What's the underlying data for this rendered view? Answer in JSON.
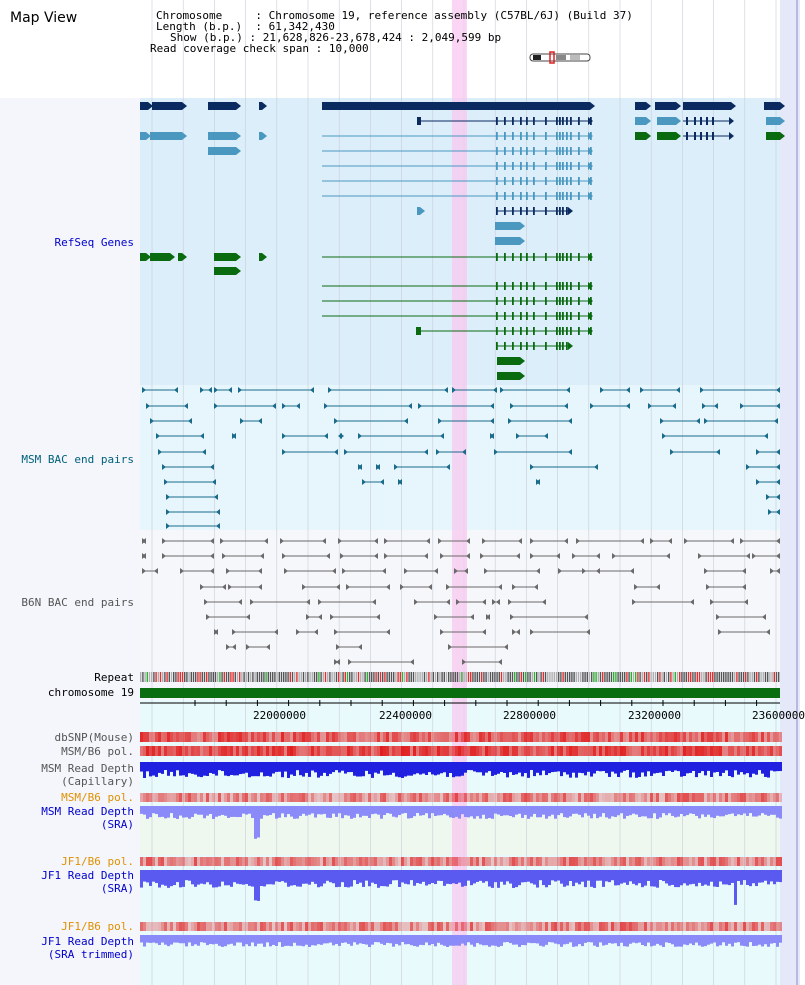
{
  "title": "Map View",
  "info": {
    "chromosome_label": "Chromosome",
    "chromosome_value": "Chromosome 19, reference assembly (C57BL/6J) (Build 37)",
    "length_label": "Length (b.p.)",
    "length_value": "61,342,430",
    "show_label": "Show (b.p.)",
    "show_value": "21,628,826-23,678,424 : 2,049,599 bp",
    "coverage_label": "Read coverage check span",
    "coverage_value": "10,000"
  },
  "tracks": {
    "refseq": "RefSeq Genes",
    "msm_bac": "MSM BAC end pairs",
    "b6n_bac": "B6N BAC end pairs",
    "repeat": "Repeat",
    "chromosome": "chromosome 19",
    "dbsnp": "dbSNP(Mouse)",
    "msm_b6_pol": "MSM/B6 pol.",
    "msm_depth_cap_1": "MSM Read Depth",
    "msm_depth_cap_2": "(Capillary)",
    "msm_b6_pol_2": "MSM/B6 pol.",
    "msm_depth_sra_1": "MSM Read Depth",
    "msm_depth_sra_2": "(SRA)",
    "jf1_b6_pol": "JF1/B6 pol.",
    "jf1_depth_sra_1": "JF1 Read Depth",
    "jf1_depth_sra_2": "(SRA)",
    "jf1_b6_pol_2": "JF1/B6 pol.",
    "jf1_depth_trim_1": "JF1 Read Depth",
    "jf1_depth_trim_2": "(SRA trimmed)"
  },
  "axis": {
    "ticks": [
      "22000000",
      "22400000",
      "22800000",
      "23200000",
      "23600000"
    ]
  },
  "colors": {
    "refseq_bg": "#dceefa",
    "msm_bg": "#e6f6fc",
    "navy": "#0a2a60",
    "steel": "#4a98c0",
    "green": "#0a6a10",
    "highlight": "#f8c8f0",
    "chrom_bar": "#0a6e10",
    "snp_red": "#f06060",
    "depth_blue": "#2020e0",
    "depth_light": "#8a8af8"
  }
}
